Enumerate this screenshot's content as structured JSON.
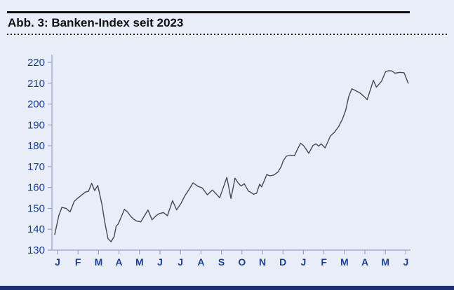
{
  "header": {
    "title": "Abb. 3: Banken-Index seit 2023"
  },
  "chart_data": {
    "type": "line",
    "title": "Abb. 3: Banken-Index seit 2023",
    "xlabel": "",
    "ylabel": "",
    "x_unit": "months since January 2023, fractional month positions",
    "x_tick_labels": [
      "J",
      "F",
      "M",
      "A",
      "M",
      "J",
      "J",
      "A",
      "S",
      "O",
      "N",
      "D",
      "J",
      "F",
      "M",
      "A",
      "M",
      "J"
    ],
    "y_ticks": [
      130,
      140,
      150,
      160,
      170,
      180,
      190,
      200,
      210,
      220
    ],
    "ylim": [
      130,
      220
    ],
    "grid": false,
    "legend": "none",
    "line_color": "#474850",
    "axis_color": "#94a2cd",
    "label_color": "#1e3f96",
    "background_color": "#e9edf8",
    "series": [
      {
        "name": "Banken-Index",
        "points": [
          [
            0.0,
            137.5
          ],
          [
            0.2,
            146.5
          ],
          [
            0.35,
            150.5
          ],
          [
            0.55,
            150.0
          ],
          [
            0.75,
            148.3
          ],
          [
            0.95,
            153.3
          ],
          [
            1.1,
            154.7
          ],
          [
            1.3,
            156.3
          ],
          [
            1.5,
            157.8
          ],
          [
            1.65,
            158.2
          ],
          [
            1.8,
            162.0
          ],
          [
            1.95,
            158.5
          ],
          [
            2.1,
            161.0
          ],
          [
            2.3,
            152.0
          ],
          [
            2.45,
            143.0
          ],
          [
            2.6,
            135.5
          ],
          [
            2.75,
            134.0
          ],
          [
            2.9,
            136.5
          ],
          [
            3.0,
            141.5
          ],
          [
            3.1,
            142.5
          ],
          [
            3.25,
            146.0
          ],
          [
            3.4,
            149.5
          ],
          [
            3.55,
            148.3
          ],
          [
            3.7,
            146.3
          ],
          [
            3.85,
            144.8
          ],
          [
            4.0,
            143.9
          ],
          [
            4.2,
            143.5
          ],
          [
            4.55,
            149.2
          ],
          [
            4.75,
            144.5
          ],
          [
            4.95,
            146.5
          ],
          [
            5.1,
            147.5
          ],
          [
            5.3,
            148.0
          ],
          [
            5.5,
            146.5
          ],
          [
            5.75,
            153.7
          ],
          [
            5.95,
            149.3
          ],
          [
            6.15,
            152.2
          ],
          [
            6.35,
            156.0
          ],
          [
            6.55,
            159.0
          ],
          [
            6.75,
            162.2
          ],
          [
            7.0,
            160.5
          ],
          [
            7.2,
            159.8
          ],
          [
            7.45,
            156.5
          ],
          [
            7.7,
            158.8
          ],
          [
            8.05,
            155.1
          ],
          [
            8.4,
            164.9
          ],
          [
            8.6,
            154.7
          ],
          [
            8.8,
            164.5
          ],
          [
            8.95,
            162.2
          ],
          [
            9.1,
            160.7
          ],
          [
            9.25,
            161.8
          ],
          [
            9.45,
            158.3
          ],
          [
            9.55,
            157.8
          ],
          [
            9.7,
            156.8
          ],
          [
            9.85,
            157.2
          ],
          [
            10.0,
            161.6
          ],
          [
            10.1,
            160.3
          ],
          [
            10.35,
            166.2
          ],
          [
            10.5,
            165.6
          ],
          [
            10.7,
            166.0
          ],
          [
            10.9,
            167.5
          ],
          [
            11.05,
            170.0
          ],
          [
            11.15,
            172.8
          ],
          [
            11.3,
            175.0
          ],
          [
            11.5,
            175.5
          ],
          [
            11.7,
            175.2
          ],
          [
            11.85,
            178.4
          ],
          [
            12.0,
            181.2
          ],
          [
            12.15,
            180.0
          ],
          [
            12.4,
            176.4
          ],
          [
            12.6,
            180.1
          ],
          [
            12.75,
            180.9
          ],
          [
            12.88,
            179.8
          ],
          [
            13.0,
            180.9
          ],
          [
            13.2,
            179.0
          ],
          [
            13.45,
            184.6
          ],
          [
            13.65,
            186.5
          ],
          [
            13.85,
            189.1
          ],
          [
            14.05,
            193.0
          ],
          [
            14.2,
            197.0
          ],
          [
            14.35,
            203.6
          ],
          [
            14.5,
            207.3
          ],
          [
            14.65,
            206.6
          ],
          [
            14.9,
            205.3
          ],
          [
            15.1,
            203.6
          ],
          [
            15.25,
            202.1
          ],
          [
            15.55,
            211.4
          ],
          [
            15.7,
            208.1
          ],
          [
            15.95,
            210.9
          ],
          [
            16.15,
            215.6
          ],
          [
            16.3,
            216.0
          ],
          [
            16.45,
            215.9
          ],
          [
            16.6,
            214.8
          ],
          [
            16.85,
            215.2
          ],
          [
            17.05,
            215.0
          ],
          [
            17.25,
            210.0
          ]
        ]
      }
    ]
  },
  "footer": {
    "bar_color": "#1c2e6d"
  }
}
